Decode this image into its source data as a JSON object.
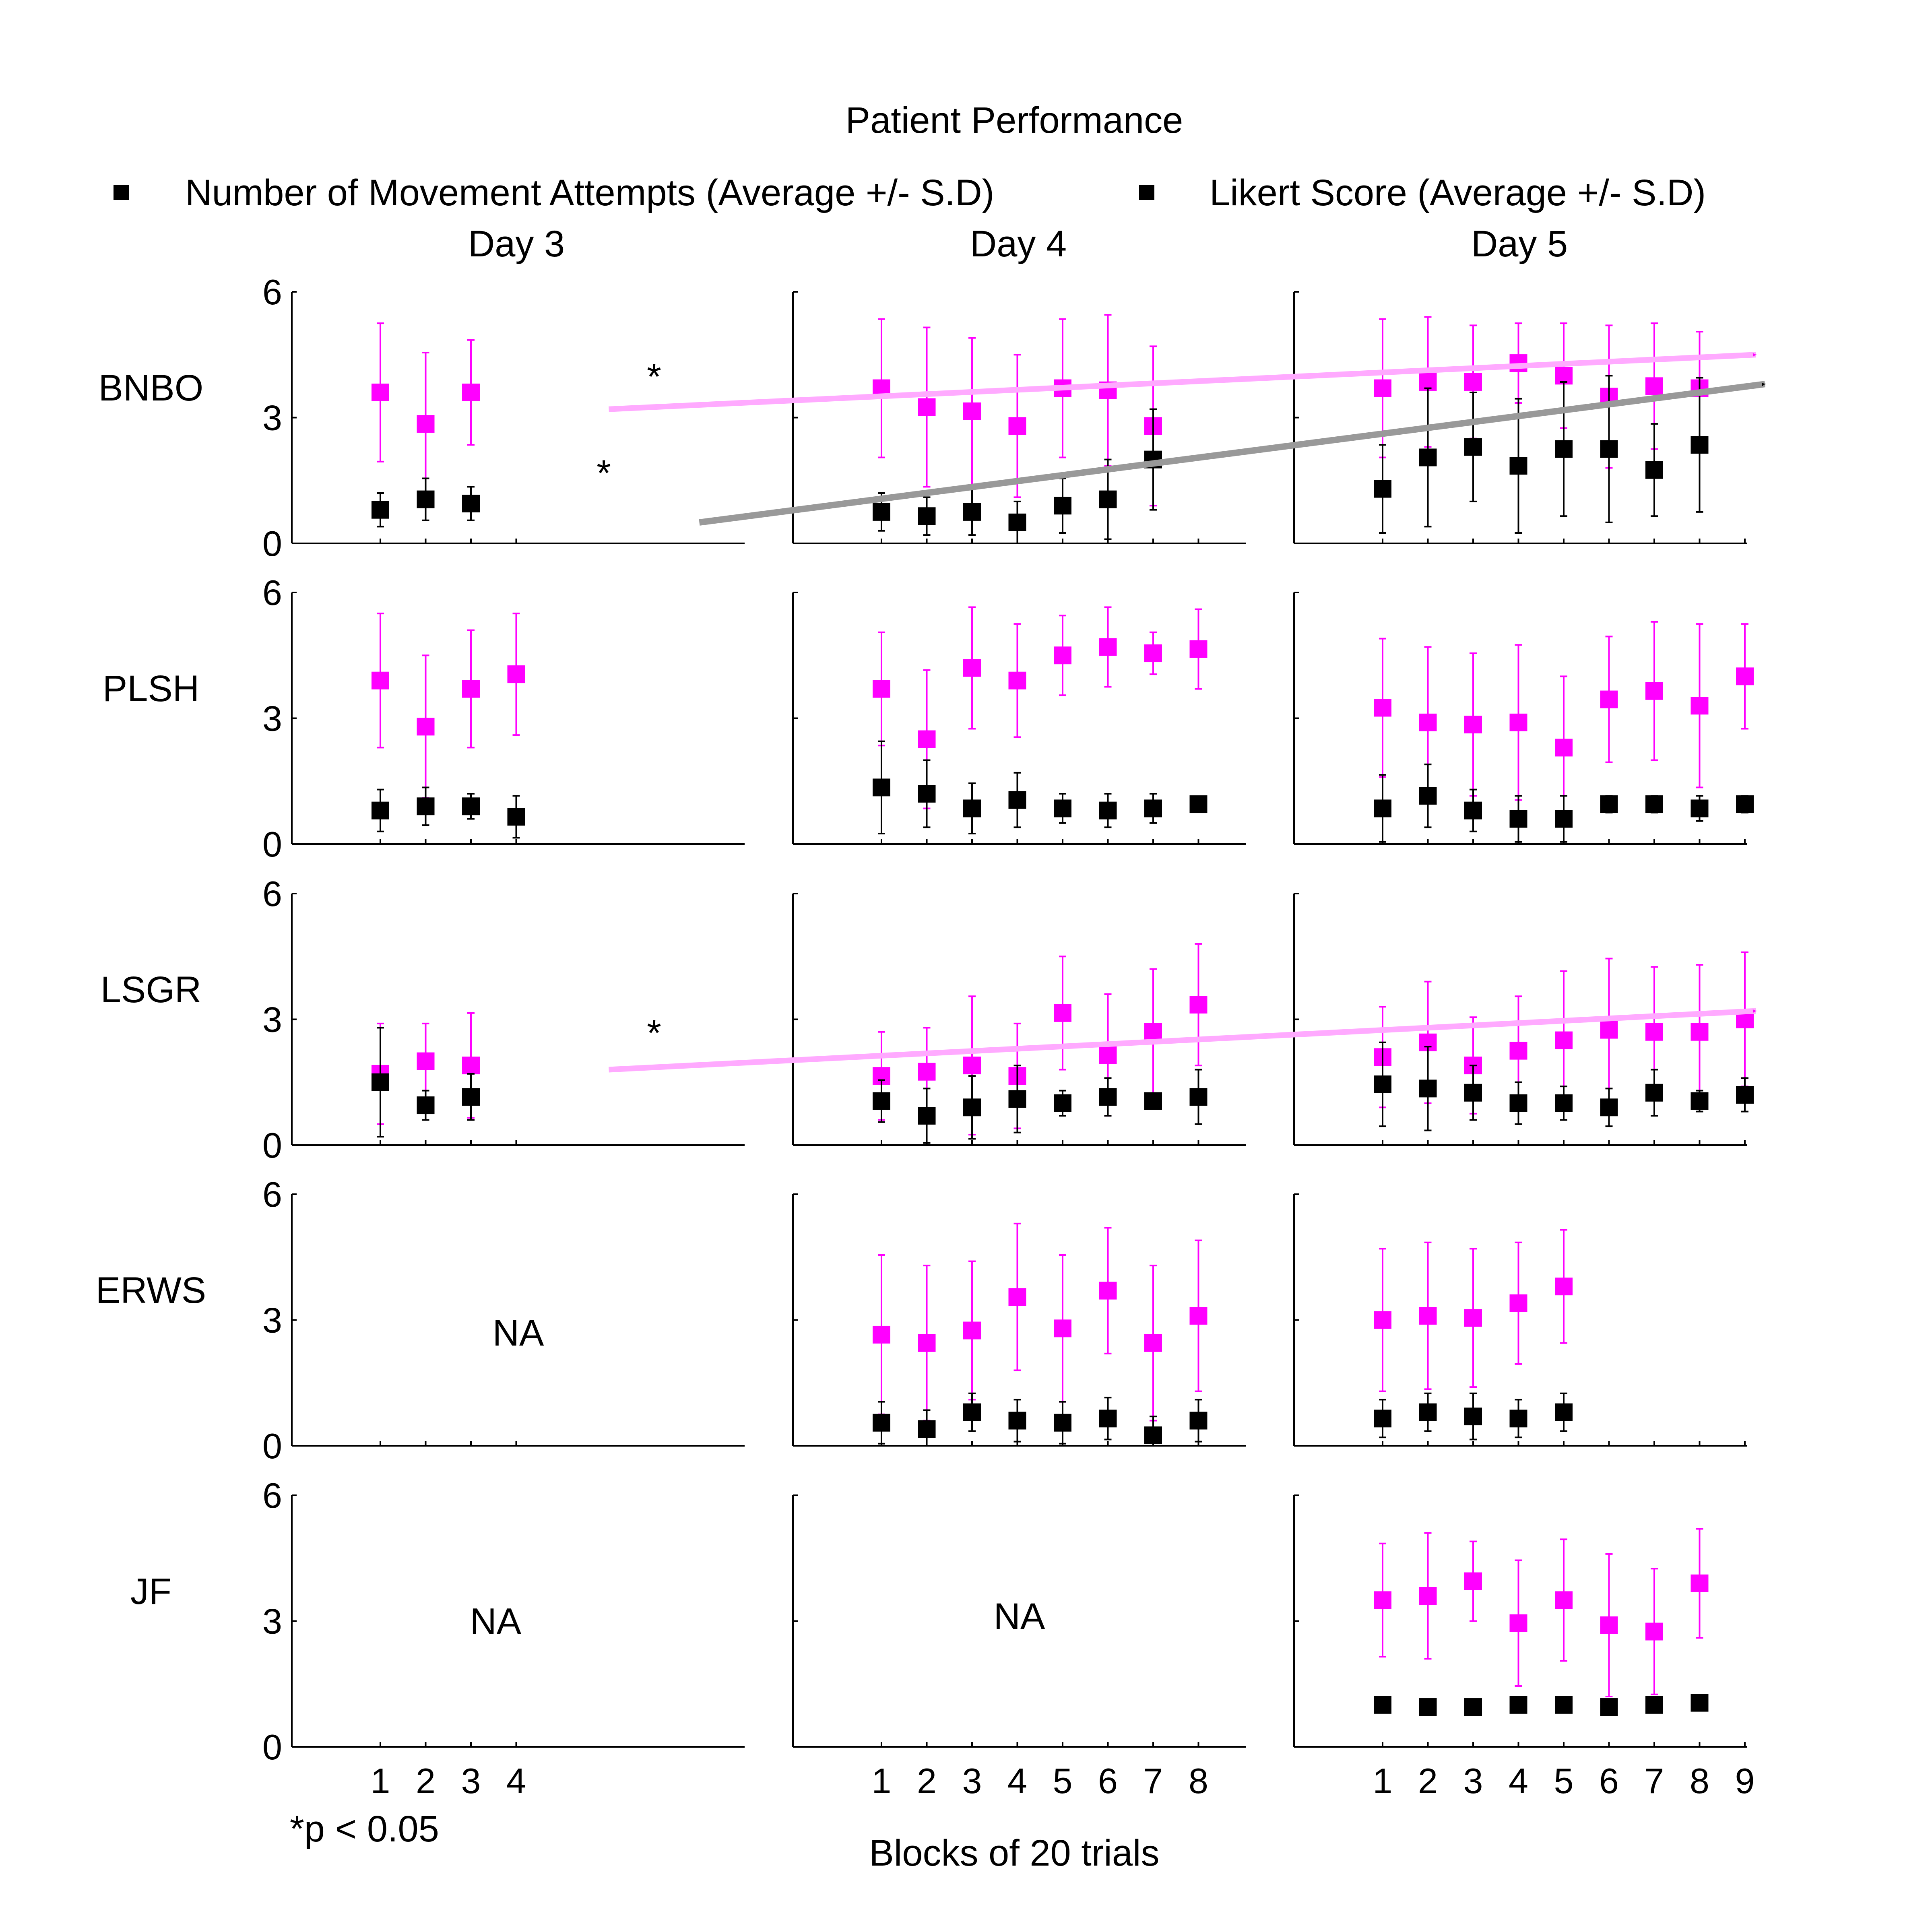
{
  "chart_data": {
    "type": "scatter",
    "title": "Patient Performance",
    "xlabel": "Blocks of 20 trials",
    "ylim": [
      0,
      6
    ],
    "yticks": [
      0,
      3,
      6
    ],
    "note": "*p < 0.05",
    "na_label": "NA",
    "star_label": "*",
    "colors": {
      "attempts": "#000000",
      "likert": "#ff00ff",
      "likert_trend": "#ffaaff",
      "attempts_trend": "#999999"
    },
    "legend": [
      {
        "key": "attempts",
        "label": "Number of Movement Attempts (Average +/- S.D)"
      },
      {
        "key": "likert",
        "label": "Likert Score (Average +/- S.D)"
      }
    ],
    "days": [
      {
        "label": "Day 3",
        "xticks": [
          "1",
          "2",
          "3",
          "4"
        ]
      },
      {
        "label": "Day 4",
        "xticks": [
          "1",
          "2",
          "3",
          "4",
          "5",
          "6",
          "7",
          "8"
        ]
      },
      {
        "label": "Day 5",
        "xticks": [
          "1",
          "2",
          "3",
          "4",
          "5",
          "6",
          "7",
          "8",
          "9"
        ]
      }
    ],
    "patients": [
      {
        "label": "BNBO",
        "panels": [
          {
            "attempts": [
              [
                1,
                0.8,
                0.4
              ],
              [
                2,
                1.05,
                0.5
              ],
              [
                3,
                0.95,
                0.4
              ]
            ],
            "likert": [
              [
                1,
                3.6,
                1.65
              ],
              [
                2,
                2.85,
                1.7
              ],
              [
                3,
                3.6,
                1.25
              ]
            ]
          },
          {
            "attempts": [
              [
                1,
                0.75,
                0.45
              ],
              [
                2,
                0.65,
                0.45
              ],
              [
                3,
                0.75,
                0.55
              ],
              [
                4,
                0.5,
                0.5
              ],
              [
                5,
                0.9,
                0.65
              ],
              [
                6,
                1.05,
                0.95
              ],
              [
                7,
                2.0,
                1.2
              ]
            ],
            "likert": [
              [
                1,
                3.7,
                1.65
              ],
              [
                2,
                3.25,
                1.9
              ],
              [
                3,
                3.15,
                1.75
              ],
              [
                4,
                2.8,
                1.7
              ],
              [
                5,
                3.7,
                1.65
              ],
              [
                6,
                3.65,
                1.8
              ],
              [
                7,
                2.8,
                1.9
              ]
            ]
          },
          {
            "attempts": [
              [
                1,
                1.3,
                1.05
              ],
              [
                2,
                2.05,
                1.65
              ],
              [
                3,
                2.3,
                1.3
              ],
              [
                4,
                1.85,
                1.6
              ],
              [
                5,
                2.25,
                1.6
              ],
              [
                6,
                2.25,
                1.75
              ],
              [
                7,
                1.75,
                1.1
              ],
              [
                8,
                2.35,
                1.6
              ]
            ],
            "likert": [
              [
                1,
                3.7,
                1.65
              ],
              [
                2,
                3.85,
                1.55
              ],
              [
                3,
                3.85,
                1.35
              ],
              [
                4,
                4.3,
                0.95
              ],
              [
                5,
                4.0,
                1.25
              ],
              [
                6,
                3.5,
                1.7
              ],
              [
                7,
                3.75,
                1.5
              ],
              [
                8,
                3.7,
                1.35
              ]
            ]
          }
        ],
        "trends": [
          {
            "series": "likert",
            "from": [
              0,
              0.7,
              3.2
            ],
            "to": [
              2,
              1.02,
              4.5
            ],
            "star": [
              0,
              7.2,
              4.2
            ]
          },
          {
            "series": "attempts",
            "from": [
              0,
              0.9,
              0.5
            ],
            "to": [
              2,
              1.04,
              3.8
            ],
            "star": [
              0,
              6.2,
              1.9
            ]
          }
        ]
      },
      {
        "label": "PLSH",
        "panels": [
          {
            "attempts": [
              [
                1,
                0.8,
                0.5
              ],
              [
                2,
                0.9,
                0.45
              ],
              [
                3,
                0.9,
                0.3
              ],
              [
                4,
                0.65,
                0.5
              ]
            ],
            "likert": [
              [
                1,
                3.9,
                1.6
              ],
              [
                2,
                2.8,
                1.7
              ],
              [
                3,
                3.7,
                1.4
              ],
              [
                4,
                4.05,
                1.45
              ]
            ]
          },
          {
            "attempts": [
              [
                1,
                1.35,
                1.1
              ],
              [
                2,
                1.2,
                0.8
              ],
              [
                3,
                0.85,
                0.6
              ],
              [
                4,
                1.05,
                0.65
              ],
              [
                5,
                0.85,
                0.35
              ],
              [
                6,
                0.8,
                0.4
              ],
              [
                7,
                0.85,
                0.35
              ],
              [
                8,
                0.95,
                0.15
              ]
            ],
            "likert": [
              [
                1,
                3.7,
                1.35
              ],
              [
                2,
                2.5,
                1.65
              ],
              [
                3,
                4.2,
                1.45
              ],
              [
                4,
                3.9,
                1.35
              ],
              [
                5,
                4.5,
                0.95
              ],
              [
                6,
                4.7,
                0.95
              ],
              [
                7,
                4.55,
                0.5
              ],
              [
                8,
                4.65,
                0.95
              ]
            ]
          },
          {
            "attempts": [
              [
                1,
                0.85,
                0.8
              ],
              [
                2,
                1.15,
                0.75
              ],
              [
                3,
                0.8,
                0.5
              ],
              [
                4,
                0.6,
                0.55
              ],
              [
                5,
                0.6,
                0.55
              ],
              [
                6,
                0.95,
                0.2
              ],
              [
                7,
                0.95,
                0.2
              ],
              [
                8,
                0.85,
                0.3
              ],
              [
                9,
                0.95,
                0.2
              ]
            ],
            "likert": [
              [
                1,
                3.25,
                1.65
              ],
              [
                2,
                2.9,
                1.8
              ],
              [
                3,
                2.85,
                1.7
              ],
              [
                4,
                2.9,
                1.85
              ],
              [
                5,
                2.3,
                1.7
              ],
              [
                6,
                3.45,
                1.5
              ],
              [
                7,
                3.65,
                1.65
              ],
              [
                8,
                3.3,
                1.95
              ],
              [
                9,
                4.0,
                1.25
              ]
            ]
          }
        ]
      },
      {
        "label": "LSGR",
        "panels": [
          {
            "attempts": [
              [
                1,
                1.5,
                1.3
              ],
              [
                2,
                0.95,
                0.35
              ],
              [
                3,
                1.15,
                0.55
              ]
            ],
            "likert": [
              [
                1,
                1.7,
                1.2
              ],
              [
                2,
                2.0,
                0.9
              ],
              [
                3,
                1.9,
                1.25
              ]
            ]
          },
          {
            "attempts": [
              [
                1,
                1.05,
                0.5
              ],
              [
                2,
                0.7,
                0.65
              ],
              [
                3,
                0.9,
                0.75
              ],
              [
                4,
                1.1,
                0.8
              ],
              [
                5,
                1.0,
                0.3
              ],
              [
                6,
                1.15,
                0.45
              ],
              [
                7,
                1.05,
                0.15
              ],
              [
                8,
                1.15,
                0.65
              ]
            ],
            "likert": [
              [
                1,
                1.65,
                1.05
              ],
              [
                2,
                1.75,
                1.05
              ],
              [
                3,
                1.9,
                1.65
              ],
              [
                4,
                1.65,
                1.25
              ],
              [
                5,
                3.15,
                1.35
              ],
              [
                6,
                2.15,
                1.45
              ],
              [
                7,
                2.7,
                1.5
              ],
              [
                8,
                3.35,
                1.45
              ]
            ]
          },
          {
            "attempts": [
              [
                1,
                1.45,
                1.0
              ],
              [
                2,
                1.35,
                1.0
              ],
              [
                3,
                1.25,
                0.65
              ],
              [
                4,
                1.0,
                0.5
              ],
              [
                5,
                1.0,
                0.4
              ],
              [
                6,
                0.9,
                0.45
              ],
              [
                7,
                1.25,
                0.55
              ],
              [
                8,
                1.05,
                0.25
              ],
              [
                9,
                1.2,
                0.4
              ]
            ],
            "likert": [
              [
                1,
                2.1,
                1.2
              ],
              [
                2,
                2.45,
                1.45
              ],
              [
                3,
                1.9,
                1.15
              ],
              [
                4,
                2.25,
                1.3
              ],
              [
                5,
                2.5,
                1.65
              ],
              [
                6,
                2.75,
                1.7
              ],
              [
                7,
                2.7,
                1.55
              ],
              [
                8,
                2.7,
                1.6
              ],
              [
                9,
                3.0,
                1.6
              ]
            ]
          }
        ],
        "trends": [
          {
            "series": "likert",
            "from": [
              0,
              0.7,
              1.8
            ],
            "to": [
              2,
              1.02,
              3.2
            ],
            "star": [
              0,
              7.2,
              2.9
            ]
          }
        ]
      },
      {
        "label": "ERWS",
        "panels": [
          {
            "na": true,
            "na_pos": [
              0.5,
              0.55
            ]
          },
          {
            "attempts": [
              [
                1,
                0.55,
                0.5
              ],
              [
                2,
                0.4,
                0.45
              ],
              [
                3,
                0.8,
                0.45
              ],
              [
                4,
                0.6,
                0.5
              ],
              [
                5,
                0.55,
                0.5
              ],
              [
                6,
                0.65,
                0.5
              ],
              [
                7,
                0.25,
                0.45
              ],
              [
                8,
                0.6,
                0.5
              ]
            ],
            "likert": [
              [
                1,
                2.65,
                1.9
              ],
              [
                2,
                2.45,
                1.85
              ],
              [
                3,
                2.75,
                1.65
              ],
              [
                4,
                3.55,
                1.75
              ],
              [
                5,
                2.8,
                1.75
              ],
              [
                6,
                3.7,
                1.5
              ],
              [
                7,
                2.45,
                1.85
              ],
              [
                8,
                3.1,
                1.8
              ]
            ]
          },
          {
            "attempts": [
              [
                1,
                0.65,
                0.45
              ],
              [
                2,
                0.8,
                0.45
              ],
              [
                3,
                0.7,
                0.55
              ],
              [
                4,
                0.65,
                0.45
              ],
              [
                5,
                0.8,
                0.45
              ]
            ],
            "likert": [
              [
                1,
                3.0,
                1.7
              ],
              [
                2,
                3.1,
                1.75
              ],
              [
                3,
                3.05,
                1.65
              ],
              [
                4,
                3.4,
                1.45
              ],
              [
                5,
                3.8,
                1.35
              ]
            ]
          }
        ]
      },
      {
        "label": "JF",
        "panels": [
          {
            "na": true,
            "na_pos": [
              0.45,
              0.5
            ]
          },
          {
            "na": true,
            "na_pos": [
              0.5,
              0.48
            ]
          },
          {
            "attempts": [
              [
                1,
                1.0,
                0.1
              ],
              [
                2,
                0.95,
                0.15
              ],
              [
                3,
                0.95,
                0.15
              ],
              [
                4,
                1.0,
                0.1
              ],
              [
                5,
                1.0,
                0.1
              ],
              [
                6,
                0.95,
                0.15
              ],
              [
                7,
                1.0,
                0.1
              ],
              [
                8,
                1.05,
                0.15
              ]
            ],
            "likert": [
              [
                1,
                3.5,
                1.35
              ],
              [
                2,
                3.6,
                1.5
              ],
              [
                3,
                3.95,
                0.95
              ],
              [
                4,
                2.95,
                1.5
              ],
              [
                5,
                3.5,
                1.45
              ],
              [
                6,
                2.9,
                1.7
              ],
              [
                7,
                2.75,
                1.5
              ],
              [
                8,
                3.9,
                1.3
              ]
            ]
          }
        ]
      }
    ]
  }
}
